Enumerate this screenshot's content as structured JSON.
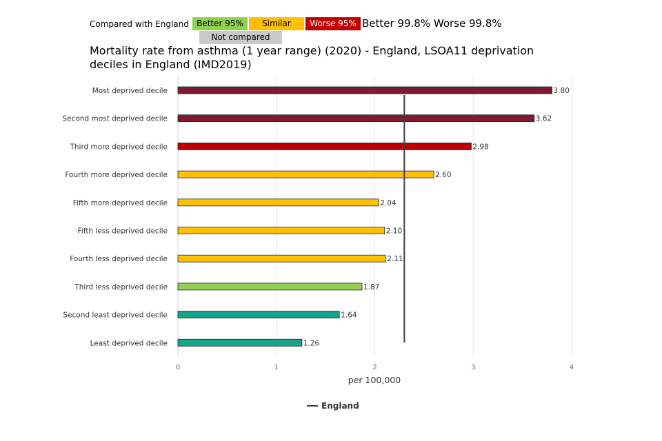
{
  "legend_key": {
    "label": "Compared with England",
    "better95": "Better 95%",
    "similar": "Similar",
    "worse95": "Worse 95%",
    "extra": "Better 99.8% Worse 99.8%",
    "not_compared": "Not compared"
  },
  "colors": {
    "better95": "#92d050",
    "similar": "#ffc000",
    "worse95": "#c00000",
    "worse998": "#7f1a33",
    "better998": "#14a58a",
    "not_compared": "#c9c9c9",
    "england": "#404040"
  },
  "chart_data": {
    "type": "bar",
    "title": "Mortality rate from asthma (1 year range) (2020) - England, LSOA11 deprivation deciles in England (IMD2019)",
    "xlabel": "per 100,000",
    "ylabel": "",
    "xlim": [
      0,
      4
    ],
    "ticks": [
      "0",
      "1",
      "2",
      "3",
      "4"
    ],
    "categories": [
      "Most deprived decile",
      "Second most deprived decile",
      "Third more deprived decile",
      "Fourth more deprived decile",
      "Fifth more deprived decile",
      "Fifth less deprived decile",
      "Fourth less deprived decile",
      "Third less deprived decile",
      "Second least deprived decile",
      "Least deprived decile"
    ],
    "values": [
      3.8,
      3.62,
      2.98,
      2.6,
      2.04,
      2.1,
      2.11,
      1.87,
      1.64,
      1.26
    ],
    "labels": [
      "3.80",
      "3.62",
      "2.98",
      "2.60",
      "2.04",
      "2.10",
      "2.11",
      "1.87",
      "1.64",
      "1.26"
    ],
    "significance": [
      "worse998",
      "worse998",
      "worse95",
      "similar",
      "similar",
      "similar",
      "similar",
      "better95",
      "better998",
      "better998"
    ],
    "england_value": 2.3,
    "legend": {
      "entries": [
        "England"
      ],
      "placement": "bottom"
    }
  }
}
